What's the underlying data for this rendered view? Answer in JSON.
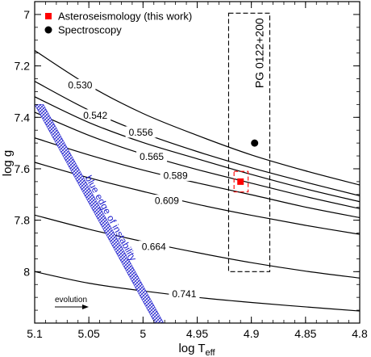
{
  "chart_data": {
    "type": "line",
    "xlabel": "log T",
    "xlabel_sub": "eff",
    "ylabel": "log g",
    "xlim": [
      5.1,
      4.8
    ],
    "ylim": [
      6.95,
      8.2
    ],
    "x_ticks": [
      5.1,
      5.05,
      5.0,
      4.95,
      4.9,
      4.85,
      4.8
    ],
    "x_tick_labels": [
      "5.1",
      "5.05",
      "5",
      "4.95",
      "4.9",
      "4.85",
      "4.8"
    ],
    "y_ticks": [
      7.0,
      7.2,
      7.4,
      7.6,
      7.8,
      8.0
    ],
    "y_tick_labels": [
      "7",
      "7.2",
      "7.4",
      "7.6",
      "7.8",
      "8"
    ],
    "series": [
      {
        "label": "0.530",
        "label_at": [
          5.058,
          7.273
        ],
        "x": [
          5.1,
          5.05,
          5.0,
          4.95,
          4.9,
          4.85,
          4.8
        ],
        "y": [
          7.14,
          7.276,
          7.385,
          7.47,
          7.546,
          7.608,
          7.663
        ]
      },
      {
        "label": "0.542",
        "label_at": [
          5.044,
          7.391
        ],
        "x": [
          5.1,
          5.05,
          5.0,
          4.95,
          4.9,
          4.85,
          4.8
        ],
        "y": [
          7.26,
          7.372,
          7.461,
          7.533,
          7.596,
          7.652,
          7.705
        ]
      },
      {
        "label": "0.556",
        "label_at": [
          5.002,
          7.457
        ],
        "x": [
          5.1,
          5.05,
          5.0,
          4.95,
          4.9,
          4.85,
          4.8
        ],
        "y": [
          7.32,
          7.42,
          7.498,
          7.561,
          7.622,
          7.678,
          7.728
        ]
      },
      {
        "label": "0.565",
        "label_at": [
          4.992,
          7.551
        ],
        "x": [
          5.1,
          5.05,
          5.0,
          4.95,
          4.9,
          4.85,
          4.8
        ],
        "y": [
          7.38,
          7.47,
          7.543,
          7.603,
          7.656,
          7.708,
          7.755
        ]
      },
      {
        "label": "0.589",
        "label_at": [
          4.97,
          7.625
        ],
        "x": [
          5.1,
          5.05,
          5.0,
          4.95,
          4.9,
          4.85,
          4.8
        ],
        "y": [
          7.48,
          7.546,
          7.605,
          7.655,
          7.701,
          7.749,
          7.79
        ]
      },
      {
        "label": "0.609",
        "label_at": [
          4.978,
          7.723
        ],
        "x": [
          5.1,
          5.05,
          5.0,
          4.95,
          4.9,
          4.85,
          4.8
        ],
        "y": [
          7.575,
          7.635,
          7.688,
          7.738,
          7.781,
          7.82,
          7.855
        ]
      },
      {
        "label": "0.664",
        "label_at": [
          4.99,
          7.902
        ],
        "x": [
          5.1,
          5.05,
          5.0,
          4.95,
          4.9,
          4.85,
          4.8
        ],
        "y": [
          7.78,
          7.835,
          7.883,
          7.926,
          7.965,
          7.998,
          8.025
        ]
      },
      {
        "label": "0.741",
        "label_at": [
          4.962,
          8.086
        ],
        "x": [
          5.1,
          5.05,
          5.0,
          4.95,
          4.9,
          4.85,
          4.8
        ],
        "y": [
          8.0,
          8.045,
          8.075,
          8.1,
          8.12,
          8.137,
          8.153
        ]
      }
    ],
    "instability_band": {
      "label": "blue edge of instability",
      "color": "#2828d0",
      "start": [
        5.096,
        7.35
      ],
      "end": [
        4.985,
        8.2
      ],
      "half_width": 0.004
    },
    "points": [
      {
        "name": "Asteroseismology (this work)",
        "marker": "square",
        "color": "#ff0000",
        "x": 4.91,
        "y": 7.65,
        "box": {
          "x": [
            4.916,
            4.903
          ],
          "y": [
            7.61,
            7.69
          ]
        }
      },
      {
        "name": "Spectroscopy",
        "marker": "circle",
        "color": "#000000",
        "x": 4.897,
        "y": 7.5
      }
    ],
    "range_box": {
      "label": "PG 0122+200",
      "x": [
        4.921,
        4.883
      ],
      "y": [
        6.995,
        8.0
      ]
    },
    "legend_position": "top-left",
    "annotation": {
      "text": "evolution",
      "direction": "right"
    }
  }
}
